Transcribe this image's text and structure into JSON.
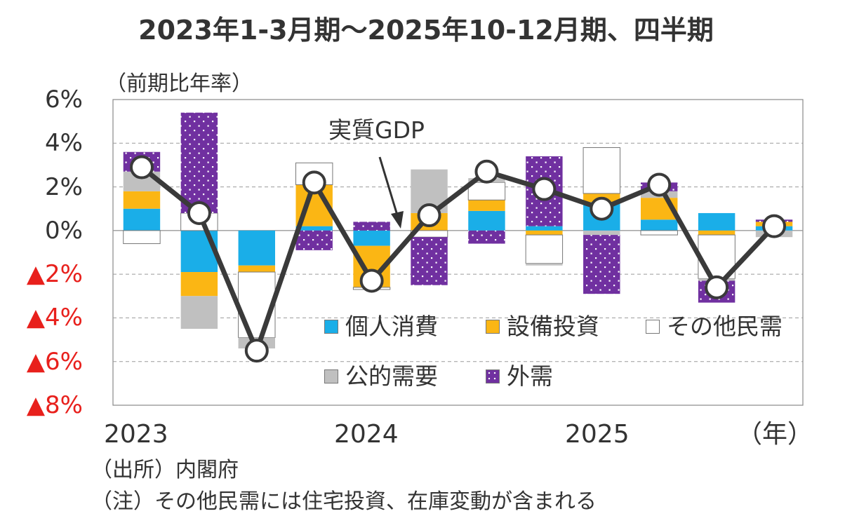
{
  "title": "2023年1-3月期～2025年10-12月期、四半期",
  "chart_data": {
    "type": "bar",
    "subtype": "stacked-bar-with-line",
    "title": "2023年1-3月期～2025年10-12月期、四半期",
    "ylabel": "（前期比年率）",
    "xlabel": "（年）",
    "ylim": [
      -8,
      6
    ],
    "yticks": [
      6,
      4,
      2,
      0,
      -2,
      -4,
      -6,
      -8
    ],
    "ytick_labels": [
      "6%",
      "4%",
      "2%",
      "0%",
      "▲2%",
      "▲4%",
      "▲6%",
      "▲8%"
    ],
    "year_labels": [
      "2023",
      "2024",
      "2025"
    ],
    "year_label_quarter_index": [
      0,
      4,
      8
    ],
    "grid": true,
    "annotation": "実質GDP",
    "categories": [
      "2023Q1",
      "2023Q2",
      "2023Q3",
      "2023Q4",
      "2024Q1",
      "2024Q2",
      "2024Q3",
      "2024Q4",
      "2025Q1",
      "2025Q2",
      "2025Q3",
      "2025Q4"
    ],
    "series": [
      {
        "name": "個人消費",
        "color": "#1aaee8",
        "pattern": "solid",
        "values": [
          1.0,
          -1.9,
          -1.6,
          0.2,
          -0.7,
          0.0,
          0.9,
          0.2,
          1.3,
          0.5,
          0.8,
          0.2
        ]
      },
      {
        "name": "設備投資",
        "color": "#fbb614",
        "pattern": "solid",
        "values": [
          0.8,
          -1.1,
          -0.3,
          1.9,
          -1.9,
          0.8,
          0.5,
          -0.2,
          0.4,
          1.0,
          -0.2,
          0.2
        ]
      },
      {
        "name": "その他民需",
        "color": "#ffffff",
        "pattern": "solid",
        "values": [
          -0.6,
          0.8,
          -3.0,
          1.0,
          -0.1,
          -0.3,
          0.8,
          -1.3,
          2.1,
          -0.2,
          -2.0,
          0.0
        ]
      },
      {
        "name": "公的需要",
        "color": "#c0c0c0",
        "pattern": "solid",
        "values": [
          0.9,
          -1.5,
          -0.5,
          0.0,
          0.0,
          2.0,
          0.2,
          -0.1,
          -0.2,
          0.3,
          -0.1,
          -0.3
        ]
      },
      {
        "name": "外需",
        "color": "#7030a0",
        "pattern": "dots",
        "values": [
          0.9,
          4.6,
          0.0,
          -0.9,
          0.4,
          -2.2,
          -0.6,
          3.2,
          -2.7,
          0.4,
          -1.0,
          0.1
        ]
      }
    ],
    "line": {
      "name": "実質GDP",
      "color": "#3a3a3a",
      "values": [
        2.9,
        0.8,
        -5.5,
        2.2,
        -2.3,
        0.7,
        2.7,
        1.9,
        1.0,
        2.1,
        -2.6,
        0.2
      ]
    }
  },
  "legend": [
    {
      "label": "個人消費",
      "color": "#1aaee8"
    },
    {
      "label": "設備投資",
      "color": "#fbb614"
    },
    {
      "label": "その他民需",
      "color": "#ffffff"
    },
    {
      "label": "公的需要",
      "color": "#c0c0c0"
    },
    {
      "label": "外需",
      "color": "#7030a0"
    }
  ],
  "source": "（出所）内閣府",
  "note": "（注）その他民需には住宅投資、在庫変動が含まれる"
}
